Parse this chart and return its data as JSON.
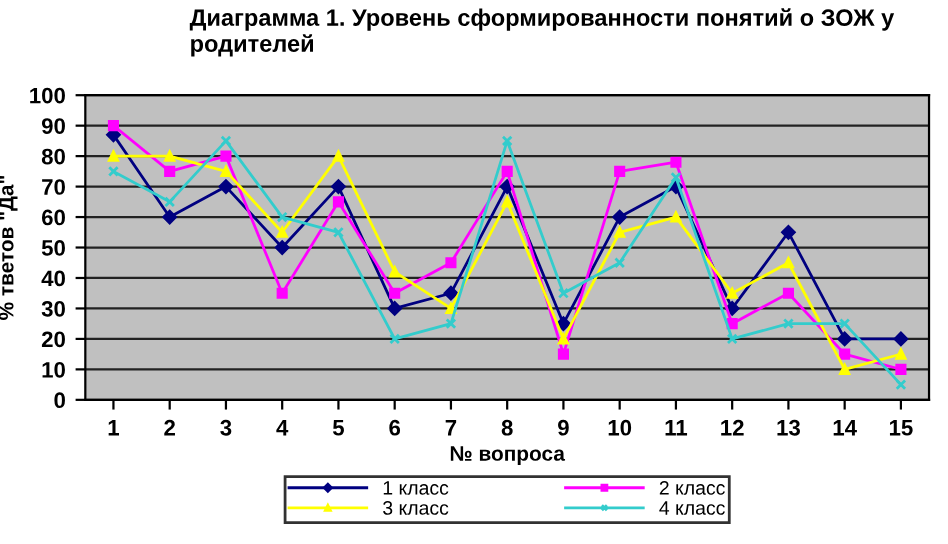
{
  "chart_data": {
    "type": "line",
    "title": "Диаграмма 1. Уровень сформированности понятий о ЗОЖ у родителей",
    "xlabel": "№ вопроса",
    "ylabel": "% тветов \"Да\"",
    "categories": [
      "1",
      "2",
      "3",
      "4",
      "5",
      "6",
      "7",
      "8",
      "9",
      "10",
      "11",
      "12",
      "13",
      "14",
      "15"
    ],
    "series": [
      {
        "name": "1 класс",
        "color": "#000080",
        "marker": "diamond",
        "values": [
          87,
          60,
          70,
          50,
          70,
          30,
          35,
          70,
          25,
          60,
          70,
          30,
          55,
          20,
          20
        ]
      },
      {
        "name": "2 класс",
        "color": "#ff00ff",
        "marker": "square",
        "values": [
          90,
          75,
          80,
          35,
          65,
          35,
          45,
          75,
          15,
          75,
          78,
          25,
          35,
          15,
          10
        ]
      },
      {
        "name": "3 класс",
        "color": "#ffff00",
        "marker": "triangle",
        "values": [
          80,
          80,
          75,
          55,
          80,
          42,
          30,
          65,
          20,
          55,
          60,
          35,
          45,
          10,
          15
        ]
      },
      {
        "name": "4 класс",
        "color": "#33cccc",
        "marker": "cross",
        "values": [
          75,
          65,
          85,
          60,
          55,
          20,
          25,
          85,
          35,
          45,
          73,
          20,
          25,
          25,
          5
        ]
      }
    ],
    "ylim": [
      0,
      100
    ],
    "yticks": [
      0,
      10,
      20,
      30,
      40,
      50,
      60,
      70,
      80,
      90,
      100
    ],
    "grid": "y",
    "legend": "bottom"
  }
}
